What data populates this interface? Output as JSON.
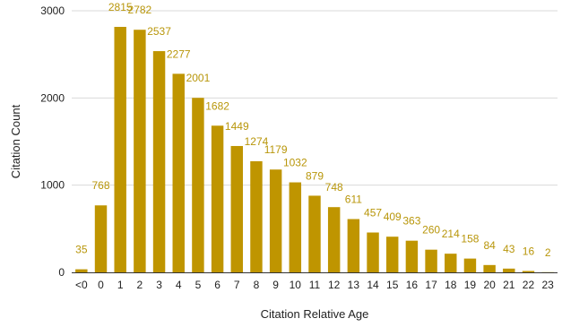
{
  "colors": {
    "bar": "#bf9500",
    "data_label": "#b8960a",
    "grid": "#d9d9d9"
  },
  "chart_data": {
    "type": "bar",
    "title": "",
    "xlabel": "Citation Relative Age",
    "ylabel": "Citation Count",
    "ylim": [
      0,
      3000
    ],
    "yticks": [
      "0",
      "1000",
      "2000",
      "3000"
    ],
    "grid": true,
    "legend": "none",
    "categories": [
      "<0",
      "0",
      "1",
      "2",
      "3",
      "4",
      "5",
      "6",
      "7",
      "8",
      "9",
      "10",
      "11",
      "12",
      "13",
      "14",
      "15",
      "16",
      "17",
      "18",
      "19",
      "20",
      "21",
      "22",
      "23"
    ],
    "values": [
      35,
      768,
      2815,
      2782,
      2537,
      2277,
      2001,
      1682,
      1449,
      1274,
      1179,
      1032,
      879,
      748,
      611,
      457,
      409,
      363,
      260,
      214,
      158,
      84,
      43,
      16,
      2
    ],
    "value_labels": [
      "35",
      "768",
      "2815",
      "2782",
      "2537",
      "2277",
      "2001",
      "1682",
      "1449",
      "1274",
      "1179",
      "1032",
      "879",
      "748",
      "611",
      "457",
      "409",
      "363",
      "260",
      "214",
      "158",
      "84",
      "43",
      "16",
      "2"
    ]
  }
}
